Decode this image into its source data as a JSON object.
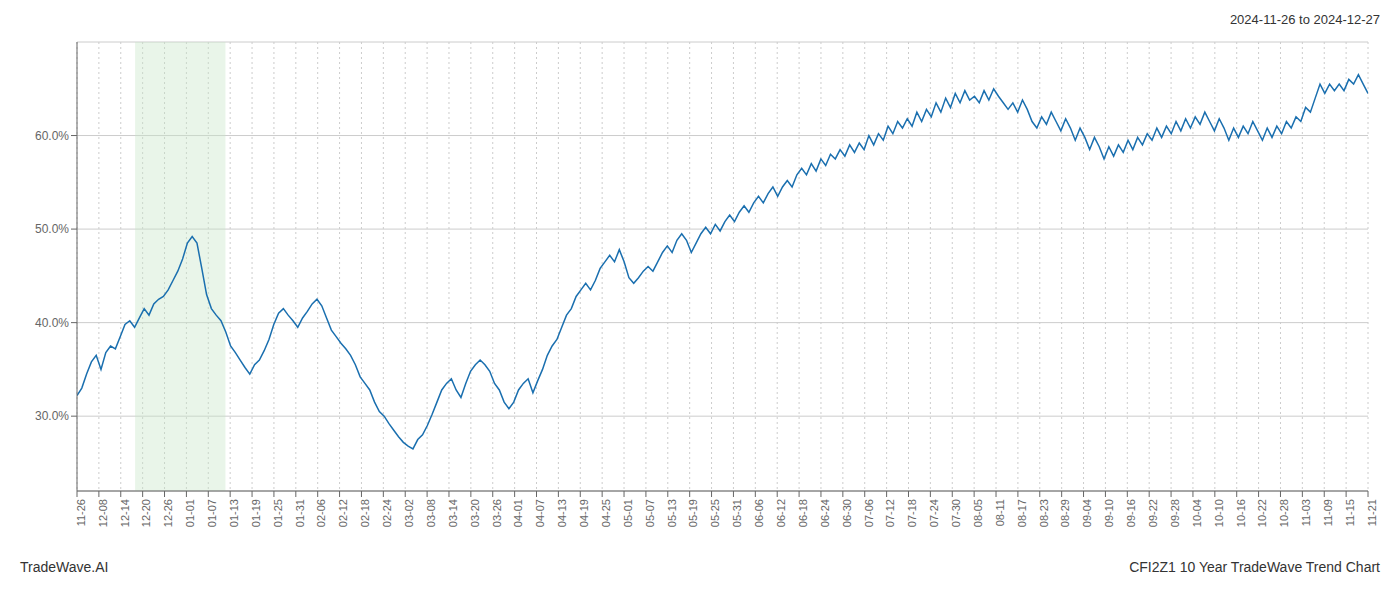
{
  "chart_data": {
    "type": "line",
    "title": "2024-11-26 to 2024-12-27",
    "annotations": [
      "TradeWave.AI",
      "CFI2Z1 10 Year TradeWave Trend Chart"
    ],
    "color": "#1a6faf",
    "grid": true,
    "highlight": {
      "x": [
        12.105,
        30.935
      ],
      "color": "#c8e6c9"
    },
    "xlim": [
      0,
      269
    ],
    "xticks": [
      {
        "value": 0,
        "label": "11-26"
      },
      {
        "value": 4.5593,
        "label": "12-08"
      },
      {
        "value": 9.1186,
        "label": "12-14"
      },
      {
        "value": 13.678,
        "label": "12-20"
      },
      {
        "value": 18.2373,
        "label": "12-26"
      },
      {
        "value": 22.7966,
        "label": "01-01"
      },
      {
        "value": 27.3559,
        "label": "01-07"
      },
      {
        "value": 31.9153,
        "label": "01-13"
      },
      {
        "value": 36.4746,
        "label": "01-19"
      },
      {
        "value": 41.0339,
        "label": "01-25"
      },
      {
        "value": 45.5932,
        "label": "01-31"
      },
      {
        "value": 50.1525,
        "label": "02-06"
      },
      {
        "value": 54.7119,
        "label": "02-12"
      },
      {
        "value": 59.2712,
        "label": "02-18"
      },
      {
        "value": 63.8305,
        "label": "02-24"
      },
      {
        "value": 68.3898,
        "label": "03-02"
      },
      {
        "value": 72.9492,
        "label": "03-08"
      },
      {
        "value": 77.5085,
        "label": "03-14"
      },
      {
        "value": 82.0678,
        "label": "03-20"
      },
      {
        "value": 86.6271,
        "label": "03-26"
      },
      {
        "value": 91.1864,
        "label": "04-01"
      },
      {
        "value": 95.7458,
        "label": "04-07"
      },
      {
        "value": 100.3051,
        "label": "04-13"
      },
      {
        "value": 104.8644,
        "label": "04-19"
      },
      {
        "value": 109.4237,
        "label": "04-25"
      },
      {
        "value": 113.9831,
        "label": "05-01"
      },
      {
        "value": 118.5424,
        "label": "05-07"
      },
      {
        "value": 123.1017,
        "label": "05-13"
      },
      {
        "value": 127.661,
        "label": "05-19"
      },
      {
        "value": 132.2203,
        "label": "05-25"
      },
      {
        "value": 136.7797,
        "label": "05-31"
      },
      {
        "value": 141.339,
        "label": "06-06"
      },
      {
        "value": 145.8983,
        "label": "06-12"
      },
      {
        "value": 150.4576,
        "label": "06-18"
      },
      {
        "value": 155.0169,
        "label": "06-24"
      },
      {
        "value": 159.5763,
        "label": "06-30"
      },
      {
        "value": 164.1356,
        "label": "07-06"
      },
      {
        "value": 168.6949,
        "label": "07-12"
      },
      {
        "value": 173.2542,
        "label": "07-18"
      },
      {
        "value": 177.8136,
        "label": "07-24"
      },
      {
        "value": 182.3729,
        "label": "07-30"
      },
      {
        "value": 186.9322,
        "label": "08-05"
      },
      {
        "value": 191.4915,
        "label": "08-11"
      },
      {
        "value": 196.0508,
        "label": "08-17"
      },
      {
        "value": 200.6102,
        "label": "08-23"
      },
      {
        "value": 205.1695,
        "label": "08-29"
      },
      {
        "value": 209.7288,
        "label": "09-04"
      },
      {
        "value": 214.2881,
        "label": "09-10"
      },
      {
        "value": 218.8475,
        "label": "09-16"
      },
      {
        "value": 223.4068,
        "label": "09-22"
      },
      {
        "value": 227.9661,
        "label": "09-28"
      },
      {
        "value": 232.5254,
        "label": "10-04"
      },
      {
        "value": 237.0847,
        "label": "10-10"
      },
      {
        "value": 241.6441,
        "label": "10-16"
      },
      {
        "value": 246.2034,
        "label": "10-22"
      },
      {
        "value": 250.7627,
        "label": "10-28"
      },
      {
        "value": 255.322,
        "label": "11-03"
      },
      {
        "value": 259.8814,
        "label": "11-09"
      },
      {
        "value": 264.4407,
        "label": "11-15"
      },
      {
        "value": 269,
        "label": "11-21"
      }
    ],
    "ylim": [
      22,
      70
    ],
    "yticks": [
      {
        "value": 30.0,
        "label": "30.0%"
      },
      {
        "value": 40.0,
        "label": "40.0%"
      },
      {
        "value": 50.0,
        "label": "50.0%"
      },
      {
        "value": 60.0,
        "label": "60.0%"
      }
    ],
    "x": [
      0,
      1,
      2,
      3,
      4,
      5,
      6,
      7,
      8,
      9,
      10,
      11,
      12,
      13,
      14,
      15,
      16,
      17,
      18,
      19,
      20,
      21,
      22,
      23,
      24,
      25,
      26,
      27,
      28,
      29,
      30,
      31,
      32,
      33,
      34,
      35,
      36,
      37,
      38,
      39,
      40,
      41,
      42,
      43,
      44,
      45,
      46,
      47,
      48,
      49,
      50,
      51,
      52,
      53,
      54,
      55,
      56,
      57,
      58,
      59,
      60,
      61,
      62,
      63,
      64,
      65,
      66,
      67,
      68,
      69,
      70,
      71,
      72,
      73,
      74,
      75,
      76,
      77,
      78,
      79,
      80,
      81,
      82,
      83,
      84,
      85,
      86,
      87,
      88,
      89,
      90,
      91,
      92,
      93,
      94,
      95,
      96,
      97,
      98,
      99,
      100,
      101,
      102,
      103,
      104,
      105,
      106,
      107,
      108,
      109,
      110,
      111,
      112,
      113,
      114,
      115,
      116,
      117,
      118,
      119,
      120,
      121,
      122,
      123,
      124,
      125,
      126,
      127,
      128,
      129,
      130,
      131,
      132,
      133,
      134,
      135,
      136,
      137,
      138,
      139,
      140,
      141,
      142,
      143,
      144,
      145,
      146,
      147,
      148,
      149,
      150,
      151,
      152,
      153,
      154,
      155,
      156,
      157,
      158,
      159,
      160,
      161,
      162,
      163,
      164,
      165,
      166,
      167,
      168,
      169,
      170,
      171,
      172,
      173,
      174,
      175,
      176,
      177,
      178,
      179,
      180,
      181,
      182,
      183,
      184,
      185,
      186,
      187,
      188,
      189,
      190,
      191,
      192,
      193,
      194,
      195,
      196,
      197,
      198,
      199,
      200,
      201,
      202,
      203,
      204,
      205,
      206,
      207,
      208,
      209,
      210,
      211,
      212,
      213,
      214,
      215,
      216,
      217,
      218,
      219,
      220,
      221,
      222,
      223,
      224,
      225,
      226,
      227,
      228,
      229,
      230,
      231,
      232,
      233,
      234,
      235,
      236,
      237,
      238,
      239,
      240,
      241,
      242,
      243,
      244,
      245,
      246,
      247,
      248,
      249,
      250,
      251,
      252,
      253,
      254,
      255,
      256,
      257,
      258,
      259,
      260,
      261,
      262,
      263,
      264,
      265,
      266,
      267,
      268,
      269
    ],
    "values": [
      32.2,
      33.0,
      34.5,
      35.8,
      36.5,
      35.0,
      36.8,
      37.5,
      37.2,
      38.5,
      39.8,
      40.2,
      39.5,
      40.5,
      41.5,
      40.8,
      42.0,
      42.5,
      42.8,
      43.5,
      44.5,
      45.5,
      46.8,
      48.5,
      49.2,
      48.5,
      45.8,
      43.0,
      41.5,
      40.8,
      40.2,
      39.0,
      37.5,
      36.8,
      36.0,
      35.2,
      34.5,
      35.5,
      36.0,
      37.0,
      38.2,
      39.8,
      41.0,
      41.5,
      40.8,
      40.2,
      39.5,
      40.5,
      41.2,
      42.0,
      42.5,
      41.8,
      40.5,
      39.2,
      38.5,
      37.8,
      37.2,
      36.5,
      35.5,
      34.2,
      33.5,
      32.8,
      31.5,
      30.5,
      30.0,
      29.2,
      28.5,
      27.8,
      27.2,
      26.8,
      26.5,
      27.5,
      28.0,
      29.0,
      30.2,
      31.5,
      32.8,
      33.5,
      34.0,
      32.8,
      32.0,
      33.5,
      34.8,
      35.5,
      36.0,
      35.5,
      34.8,
      33.5,
      32.8,
      31.5,
      30.8,
      31.5,
      32.8,
      33.5,
      34.0,
      32.5,
      33.8,
      35.0,
      36.5,
      37.5,
      38.2,
      39.5,
      40.8,
      41.5,
      42.8,
      43.5,
      44.2,
      43.5,
      44.5,
      45.8,
      46.5,
      47.2,
      46.5,
      47.8,
      46.5,
      44.8,
      44.2,
      44.8,
      45.5,
      46.0,
      45.5,
      46.5,
      47.5,
      48.2,
      47.5,
      48.8,
      49.5,
      48.8,
      47.5,
      48.5,
      49.5,
      50.2,
      49.5,
      50.5,
      49.8,
      50.8,
      51.5,
      50.8,
      51.8,
      52.5,
      51.8,
      52.8,
      53.5,
      52.8,
      53.8,
      54.5,
      53.5,
      54.5,
      55.2,
      54.5,
      55.8,
      56.5,
      55.8,
      57.0,
      56.2,
      57.5,
      56.8,
      58.0,
      57.5,
      58.5,
      57.8,
      59.0,
      58.2,
      59.2,
      58.5,
      60.0,
      59.0,
      60.2,
      59.5,
      61.0,
      60.2,
      61.5,
      60.8,
      61.8,
      61.0,
      62.5,
      61.5,
      62.8,
      62.0,
      63.5,
      62.5,
      64.0,
      63.0,
      64.5,
      63.5,
      64.8,
      63.8,
      64.2,
      63.5,
      64.8,
      63.8,
      65.0,
      64.2,
      63.5,
      62.8,
      63.5,
      62.5,
      63.8,
      62.8,
      61.5,
      60.8,
      62.0,
      61.2,
      62.5,
      61.5,
      60.5,
      61.8,
      60.8,
      59.5,
      60.8,
      59.8,
      58.5,
      59.8,
      58.8,
      57.5,
      58.8,
      57.8,
      59.0,
      58.2,
      59.5,
      58.5,
      59.8,
      59.0,
      60.2,
      59.5,
      60.8,
      59.8,
      61.0,
      60.2,
      61.5,
      60.5,
      61.8,
      60.8,
      62.0,
      61.2,
      62.5,
      61.5,
      60.5,
      61.8,
      60.8,
      59.5,
      60.8,
      59.8,
      61.0,
      60.2,
      61.5,
      60.5,
      59.5,
      60.8,
      59.8,
      61.0,
      60.2,
      61.5,
      60.8,
      62.0,
      61.5,
      63.0,
      62.5,
      64.0,
      65.5,
      64.5,
      65.5,
      64.8,
      65.5,
      64.8,
      66.0,
      65.5,
      66.5,
      65.5,
      64.5
    ]
  }
}
